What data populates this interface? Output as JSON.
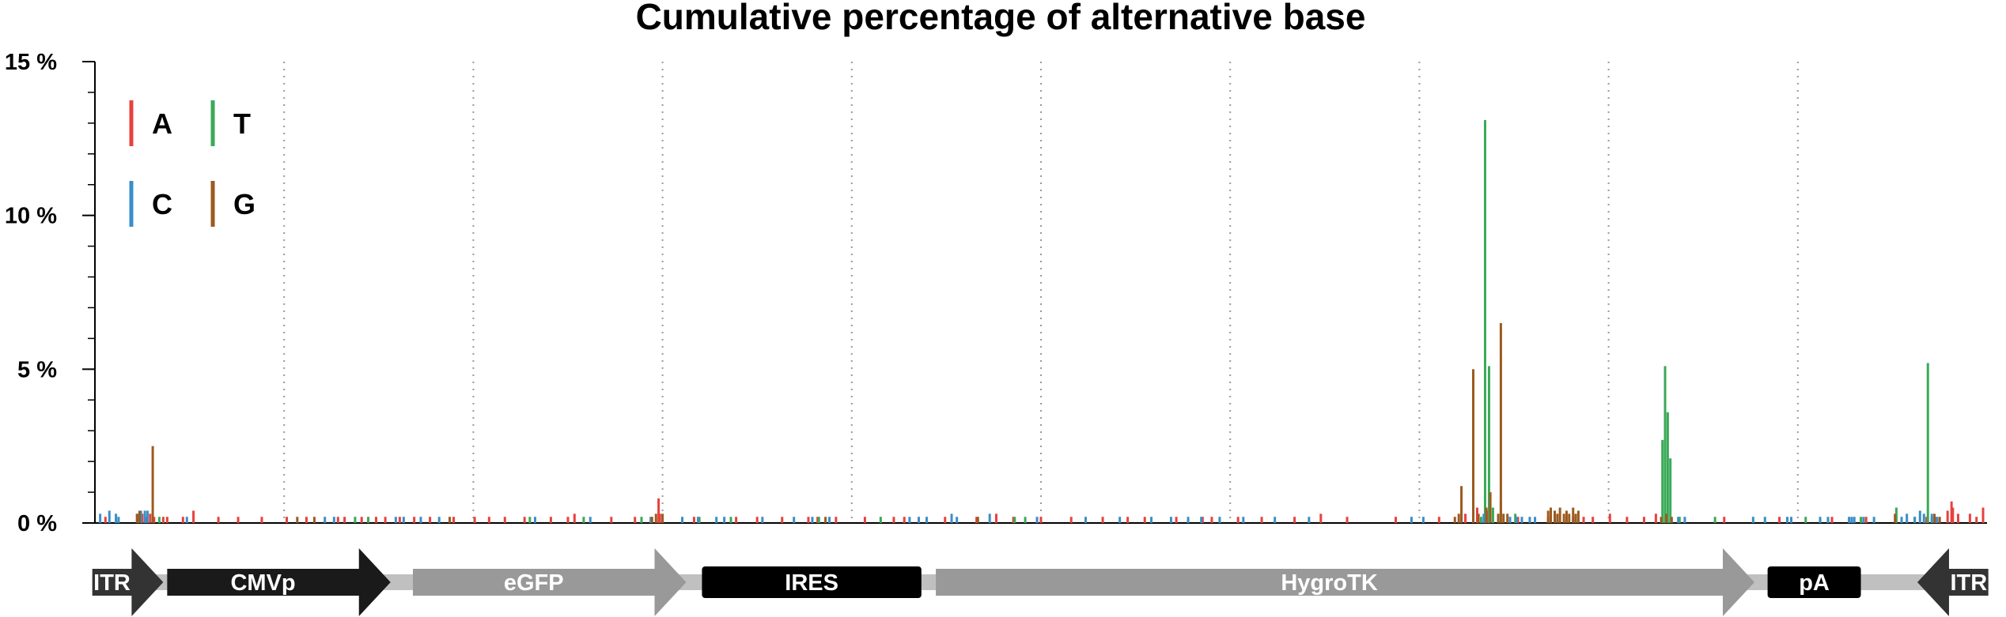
{
  "chart_data": {
    "type": "bar",
    "title": "Cumulative percentage of alternative base",
    "ylim": [
      0,
      15
    ],
    "yticks": [
      {
        "value": 0,
        "label": "0 %"
      },
      {
        "value": 5,
        "label": "5 %"
      },
      {
        "value": 10,
        "label": "10 %"
      },
      {
        "value": 15,
        "label": "15 %"
      }
    ],
    "y_minor_step": 1,
    "xlim": [
      0,
      1440
    ],
    "grid_dotted_x": [
      144,
      288,
      432,
      576,
      720,
      864,
      1008,
      1152,
      1296
    ],
    "legend": {
      "placement": "top-left",
      "entries": [
        {
          "label": "A",
          "series": "A"
        },
        {
          "label": "T",
          "series": "T"
        },
        {
          "label": "C",
          "series": "C"
        },
        {
          "label": "G",
          "series": "G"
        }
      ]
    },
    "series": [
      {
        "name": "A",
        "color": "#e8413c",
        "points": [
          [
            8,
            0.2
          ],
          [
            34,
            0.2
          ],
          [
            36,
            0.3
          ],
          [
            39,
            0.2
          ],
          [
            42,
            0.3
          ],
          [
            45,
            0.2
          ],
          [
            52,
            0.2
          ],
          [
            55,
            0.2
          ],
          [
            67,
            0.2
          ],
          [
            75,
            0.4
          ],
          [
            94,
            0.2
          ],
          [
            109,
            0.2
          ],
          [
            127,
            0.2
          ],
          [
            146,
            0.2
          ],
          [
            161,
            0.2
          ],
          [
            185,
            0.2
          ],
          [
            190,
            0.2
          ],
          [
            203,
            0.2
          ],
          [
            214,
            0.2
          ],
          [
            221,
            0.2
          ],
          [
            232,
            0.2
          ],
          [
            243,
            0.2
          ],
          [
            255,
            0.2
          ],
          [
            273,
            0.2
          ],
          [
            289,
            0.2
          ],
          [
            300,
            0.2
          ],
          [
            312,
            0.2
          ],
          [
            327,
            0.2
          ],
          [
            347,
            0.2
          ],
          [
            360,
            0.2
          ],
          [
            365,
            0.3
          ],
          [
            393,
            0.2
          ],
          [
            411,
            0.2
          ],
          [
            429,
            0.8
          ],
          [
            430,
            0.3
          ],
          [
            456,
            0.2
          ],
          [
            488,
            0.2
          ],
          [
            504,
            0.2
          ],
          [
            523,
            0.2
          ],
          [
            543,
            0.2
          ],
          [
            550,
            0.2
          ],
          [
            564,
            0.2
          ],
          [
            586,
            0.2
          ],
          [
            608,
            0.2
          ],
          [
            616,
            0.2
          ],
          [
            647,
            0.2
          ],
          [
            671,
            0.2
          ],
          [
            686,
            0.3
          ],
          [
            699,
            0.2
          ],
          [
            720,
            0.2
          ],
          [
            743,
            0.2
          ],
          [
            767,
            0.2
          ],
          [
            786,
            0.2
          ],
          [
            799,
            0.2
          ],
          [
            823,
            0.2
          ],
          [
            843,
            0.2
          ],
          [
            850,
            0.2
          ],
          [
            870,
            0.2
          ],
          [
            888,
            0.2
          ],
          [
            913,
            0.2
          ],
          [
            933,
            0.3
          ],
          [
            953,
            0.2
          ],
          [
            990,
            0.2
          ],
          [
            1023,
            0.2
          ],
          [
            1043,
            0.3
          ],
          [
            1052,
            0.5
          ],
          [
            1060,
            0.4
          ],
          [
            1083,
            0.2
          ],
          [
            1106,
            0.2
          ],
          [
            1133,
            0.2
          ],
          [
            1140,
            0.2
          ],
          [
            1153,
            0.3
          ],
          [
            1166,
            0.2
          ],
          [
            1179,
            0.2
          ],
          [
            1188,
            0.3
          ],
          [
            1240,
            0.2
          ],
          [
            1282,
            0.2
          ],
          [
            1322,
            0.2
          ],
          [
            1348,
            0.2
          ],
          [
            1394,
            0.2
          ],
          [
            1401,
            0.2
          ],
          [
            1410,
            0.4
          ],
          [
            1413,
            0.7
          ],
          [
            1414,
            0.5
          ],
          [
            1418,
            0.3
          ],
          [
            1427,
            0.3
          ],
          [
            1432,
            0.2
          ],
          [
            1437,
            0.5
          ]
        ]
      },
      {
        "name": "T",
        "color": "#3aa957",
        "points": [
          [
            49,
            0.2
          ],
          [
            198,
            0.2
          ],
          [
            208,
            0.2
          ],
          [
            331,
            0.2
          ],
          [
            372,
            0.2
          ],
          [
            416,
            0.2
          ],
          [
            460,
            0.2
          ],
          [
            484,
            0.2
          ],
          [
            551,
            0.2
          ],
          [
            598,
            0.2
          ],
          [
            700,
            0.2
          ],
          [
            708,
            0.2
          ],
          [
            1055,
            0.2
          ],
          [
            1058,
            13.1
          ],
          [
            1061,
            5.1
          ],
          [
            1064,
            0.5
          ],
          [
            1070,
            0.7
          ],
          [
            1081,
            0.3
          ],
          [
            1193,
            2.7
          ],
          [
            1195,
            5.1
          ],
          [
            1197,
            3.6
          ],
          [
            1199,
            2.1
          ],
          [
            1206,
            0.2
          ],
          [
            1233,
            0.2
          ],
          [
            1302,
            0.2
          ],
          [
            1344,
            0.2
          ],
          [
            1371,
            0.5
          ],
          [
            1385,
            0.2
          ],
          [
            1395,
            5.2
          ],
          [
            1398,
            0.2
          ]
        ]
      },
      {
        "name": "C",
        "color": "#3a8ec8",
        "points": [
          [
            4,
            0.3
          ],
          [
            11,
            0.4
          ],
          [
            16,
            0.3
          ],
          [
            18,
            0.2
          ],
          [
            33,
            0.3
          ],
          [
            35,
            0.4
          ],
          [
            38,
            0.4
          ],
          [
            40,
            0.4
          ],
          [
            70,
            0.2
          ],
          [
            175,
            0.2
          ],
          [
            182,
            0.2
          ],
          [
            229,
            0.2
          ],
          [
            235,
            0.2
          ],
          [
            248,
            0.2
          ],
          [
            262,
            0.2
          ],
          [
            335,
            0.2
          ],
          [
            377,
            0.2
          ],
          [
            423,
            0.2
          ],
          [
            447,
            0.2
          ],
          [
            459,
            0.2
          ],
          [
            473,
            0.2
          ],
          [
            479,
            0.2
          ],
          [
            508,
            0.2
          ],
          [
            532,
            0.2
          ],
          [
            546,
            0.2
          ],
          [
            559,
            0.2
          ],
          [
            620,
            0.2
          ],
          [
            627,
            0.2
          ],
          [
            633,
            0.2
          ],
          [
            652,
            0.3
          ],
          [
            656,
            0.2
          ],
          [
            681,
            0.3
          ],
          [
            717,
            0.2
          ],
          [
            754,
            0.2
          ],
          [
            780,
            0.2
          ],
          [
            804,
            0.2
          ],
          [
            819,
            0.2
          ],
          [
            832,
            0.2
          ],
          [
            842,
            0.2
          ],
          [
            856,
            0.2
          ],
          [
            874,
            0.2
          ],
          [
            898,
            0.2
          ],
          [
            924,
            0.2
          ],
          [
            1002,
            0.2
          ],
          [
            1011,
            0.2
          ],
          [
            1057,
            0.3
          ],
          [
            1077,
            0.2
          ],
          [
            1082,
            0.2
          ],
          [
            1086,
            0.2
          ],
          [
            1092,
            0.2
          ],
          [
            1096,
            0.2
          ],
          [
            1125,
            0.2
          ],
          [
            1205,
            0.2
          ],
          [
            1210,
            0.2
          ],
          [
            1262,
            0.2
          ],
          [
            1271,
            0.2
          ],
          [
            1288,
            0.2
          ],
          [
            1291,
            0.2
          ],
          [
            1313,
            0.2
          ],
          [
            1319,
            0.2
          ],
          [
            1335,
            0.2
          ],
          [
            1337,
            0.2
          ],
          [
            1339,
            0.2
          ],
          [
            1346,
            0.2
          ],
          [
            1354,
            0.2
          ],
          [
            1375,
            0.2
          ],
          [
            1379,
            0.3
          ],
          [
            1385,
            0.2
          ],
          [
            1389,
            0.4
          ],
          [
            1392,
            0.3
          ],
          [
            1398,
            0.3
          ],
          [
            1402,
            0.2
          ]
        ]
      },
      {
        "name": "G",
        "color": "#9c5a1e",
        "points": [
          [
            32,
            0.3
          ],
          [
            34,
            0.4
          ],
          [
            44,
            2.5
          ],
          [
            154,
            0.2
          ],
          [
            167,
            0.2
          ],
          [
            270,
            0.2
          ],
          [
            424,
            0.2
          ],
          [
            427,
            0.3
          ],
          [
            432,
            0.3
          ],
          [
            556,
            0.2
          ],
          [
            672,
            0.2
          ],
          [
            1035,
            0.2
          ],
          [
            1038,
            0.3
          ],
          [
            1040,
            1.2
          ],
          [
            1049,
            5.0
          ],
          [
            1053,
            0.3
          ],
          [
            1059,
            0.5
          ],
          [
            1062,
            1.0
          ],
          [
            1068,
            0.3
          ],
          [
            1070,
            6.5
          ],
          [
            1072,
            0.3
          ],
          [
            1075,
            0.3
          ],
          [
            1106,
            0.4
          ],
          [
            1108,
            0.5
          ],
          [
            1111,
            0.4
          ],
          [
            1113,
            0.3
          ],
          [
            1115,
            0.5
          ],
          [
            1118,
            0.3
          ],
          [
            1120,
            0.4
          ],
          [
            1122,
            0.3
          ],
          [
            1125,
            0.5
          ],
          [
            1127,
            0.3
          ],
          [
            1129,
            0.4
          ],
          [
            1192,
            0.2
          ],
          [
            1196,
            0.3
          ],
          [
            1200,
            0.2
          ],
          [
            1370,
            0.3
          ],
          [
            1400,
            0.3
          ],
          [
            1404,
            0.2
          ]
        ]
      }
    ],
    "features": [
      {
        "label": "ITR",
        "start": -2,
        "end": 52,
        "shape": "arrow-right",
        "fill": "#333333",
        "text_color": "#ffffff"
      },
      {
        "label": "CMVp",
        "start": 55,
        "end": 225,
        "shape": "arrow-right",
        "fill": "#1a1a1a",
        "text_color": "#ffffff"
      },
      {
        "label": "eGFP",
        "start": 242,
        "end": 450,
        "shape": "arrow-right",
        "fill": "#999999",
        "text_color": "#ffffff"
      },
      {
        "label": "IRES",
        "start": 462,
        "end": 629,
        "shape": "box",
        "fill": "#000000",
        "text_color": "#ffffff"
      },
      {
        "label": "HygroTK",
        "start": 640,
        "end": 1263,
        "shape": "arrow-right",
        "fill": "#999999",
        "text_color": "#ffffff"
      },
      {
        "label": "pA",
        "start": 1273,
        "end": 1344,
        "shape": "box",
        "fill": "#000000",
        "text_color": "#ffffff"
      },
      {
        "label": "ITR",
        "start": 1387,
        "end": 1441,
        "shape": "arrow-left",
        "fill": "#333333",
        "text_color": "#ffffff"
      }
    ],
    "backbone_color": "#c0c0c0"
  }
}
